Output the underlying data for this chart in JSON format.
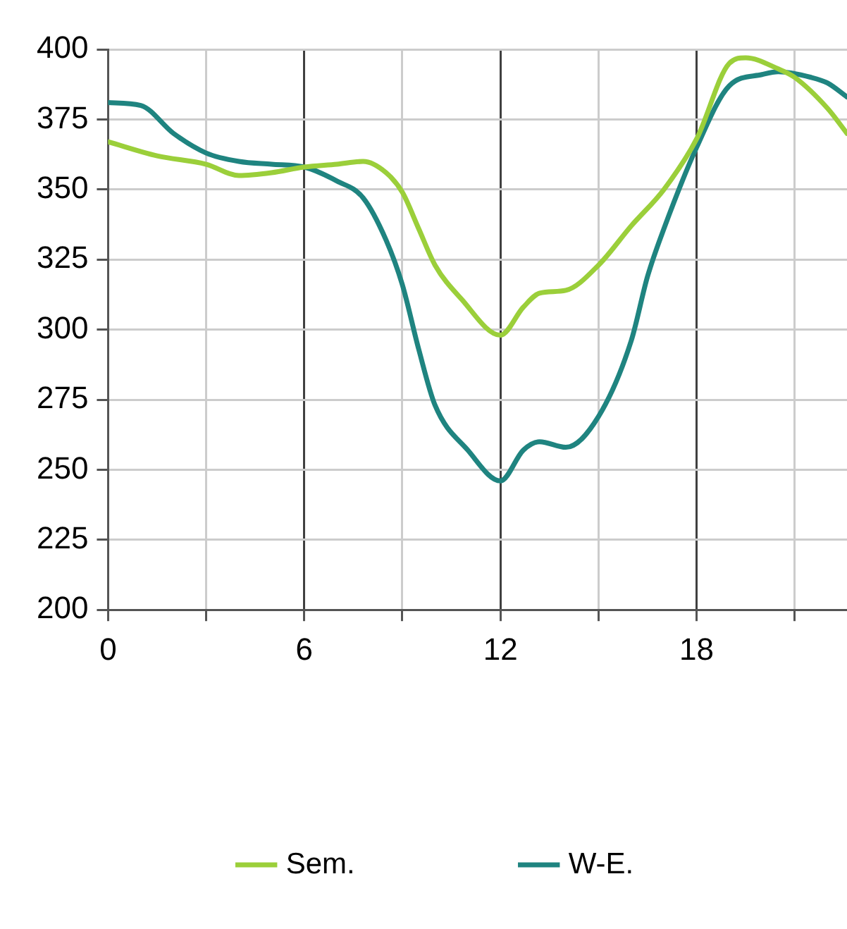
{
  "chart_data": {
    "type": "line",
    "x": [
      0,
      1.5,
      3,
      4,
      5,
      6,
      7,
      7.8,
      8.5,
      9,
      9.5,
      10,
      10.8,
      12,
      12.7,
      13.2,
      14,
      15,
      16,
      17,
      18,
      19,
      19.5,
      20.5,
      21,
      22,
      22.6
    ],
    "series": [
      {
        "name": "Sem.",
        "color": "#9bcf3a",
        "values": [
          367,
          362,
          359,
          355,
          356,
          358,
          359,
          360,
          356,
          349,
          336,
          323,
          311,
          298,
          308,
          313,
          314,
          323,
          337,
          350,
          368,
          395,
          397,
          393,
          390,
          379,
          370
        ]
      },
      {
        "name": "W-E.",
        "color": "#1f8480",
        "x": [
          0,
          1,
          2,
          3,
          4,
          5,
          6,
          7,
          7.8,
          8.5,
          9,
          9.5,
          10,
          11,
          12,
          12.7,
          13.2,
          14,
          15,
          16,
          16.5,
          17,
          18,
          19,
          20,
          20.5,
          21.5,
          22,
          22.6
        ],
        "values": [
          381,
          380,
          370,
          363,
          360,
          359,
          358,
          353,
          347,
          332,
          316,
          293,
          273,
          257,
          246,
          257,
          260,
          258,
          269,
          296,
          319,
          336,
          365,
          387,
          391,
          392,
          390,
          388,
          383
        ]
      }
    ],
    "xlim": [
      0,
      22.6
    ],
    "xticks": [
      0,
      {
        "value": 3,
        "label": null
      },
      6,
      {
        "value": 9,
        "label": null
      },
      12,
      {
        "value": 15,
        "label": null
      },
      18,
      {
        "value": 21,
        "label": null
      }
    ],
    "ylim": [
      200,
      400
    ],
    "yticks": [
      200,
      225,
      250,
      275,
      300,
      325,
      350,
      375,
      400
    ],
    "grid": true,
    "legend": "bottom",
    "marker": "none",
    "line_style": "solid"
  }
}
